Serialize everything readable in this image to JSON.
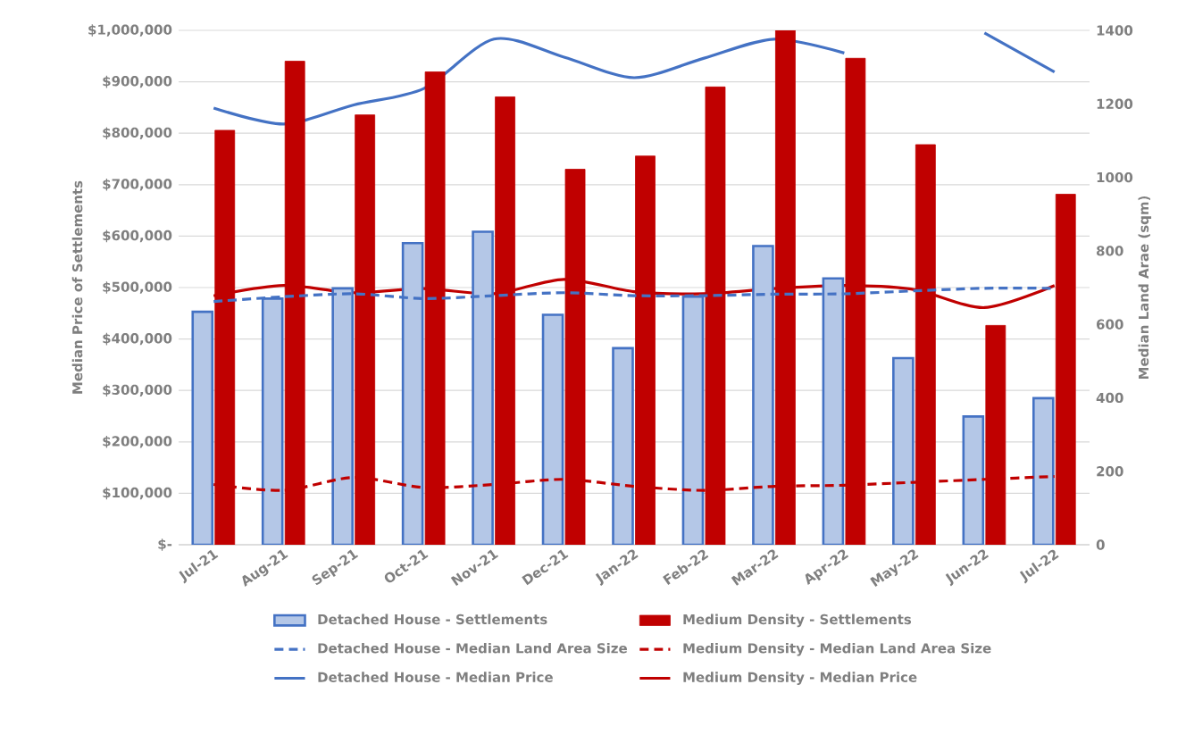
{
  "chart_data": {
    "type": "bar",
    "ylabel": "Median Price of Settlements",
    "y2label": "Median Land Arae (sqm)",
    "categories": [
      "Jul-21",
      "Aug-21",
      "Sep-21",
      "Oct-21",
      "Nov-21",
      "Dec-21",
      "Jan-22",
      "Feb-22",
      "Mar-22",
      "Apr-22",
      "May-22",
      "Jun-22",
      "Jul-22"
    ],
    "series": [
      {
        "name": "Detached House - Settlements",
        "axis": "y2",
        "color": "#b4c7e7",
        "values": [
          634,
          670,
          698,
          821,
          852,
          626,
          535,
          675,
          813,
          725,
          508,
          349,
          399
        ]
      },
      {
        "name": "Medium Density - Settlements",
        "axis": "y2",
        "color": "#c00000",
        "values": [
          1128,
          1316,
          1170,
          1287,
          1219,
          1022,
          1058,
          1246,
          1400,
          1324,
          1089,
          597,
          954
        ]
      },
      {
        "name": "Detached House - Median Land Area Size",
        "type": "line",
        "axis": "y2",
        "line_style": "dashed",
        "color": "#4472c4",
        "values": [
          662,
          675,
          683,
          670,
          678,
          686,
          678,
          678,
          682,
          683,
          691,
          698,
          698
        ]
      },
      {
        "name": "Medium Density - Median Land Area Size",
        "type": "line",
        "axis": "y2",
        "line_style": "dashed",
        "color": "#c00000",
        "values": [
          164,
          148,
          183,
          156,
          164,
          178,
          159,
          148,
          159,
          162,
          170,
          178,
          186
        ]
      },
      {
        "name": "Detached House - Median Price",
        "type": "line",
        "line_style": "solid",
        "color": "#4472c4",
        "values": [
          849000,
          818000,
          855000,
          887000,
          983000,
          948000,
          908000,
          946000,
          983000,
          956000,
          null,
          995000,
          919000
        ]
      },
      {
        "name": "Medium Density - Median Price",
        "type": "line",
        "line_style": "solid",
        "color": "#c00000",
        "values": [
          484000,
          504000,
          490000,
          498000,
          488000,
          516000,
          492000,
          488000,
          498000,
          504000,
          496000,
          461000,
          504000
        ]
      }
    ],
    "ylim": [
      0,
      1000000
    ],
    "yticks": [
      {
        "value": 0,
        "label": "$-"
      },
      {
        "value": 100000,
        "label": "$100,000"
      },
      {
        "value": 200000,
        "label": "$200,000"
      },
      {
        "value": 300000,
        "label": "$300,000"
      },
      {
        "value": 400000,
        "label": "$400,000"
      },
      {
        "value": 500000,
        "label": "$500,000"
      },
      {
        "value": 600000,
        "label": "$600,000"
      },
      {
        "value": 700000,
        "label": "$700,000"
      },
      {
        "value": 800000,
        "label": "$800,000"
      },
      {
        "value": 900000,
        "label": "$900,000"
      },
      {
        "value": 1000000,
        "label": "$1,000,000"
      }
    ],
    "y2lim": [
      0,
      1400
    ],
    "y2ticks": [
      0,
      200,
      400,
      600,
      800,
      1000,
      1200,
      1400
    ],
    "grid": "y",
    "legend": "bottom"
  }
}
